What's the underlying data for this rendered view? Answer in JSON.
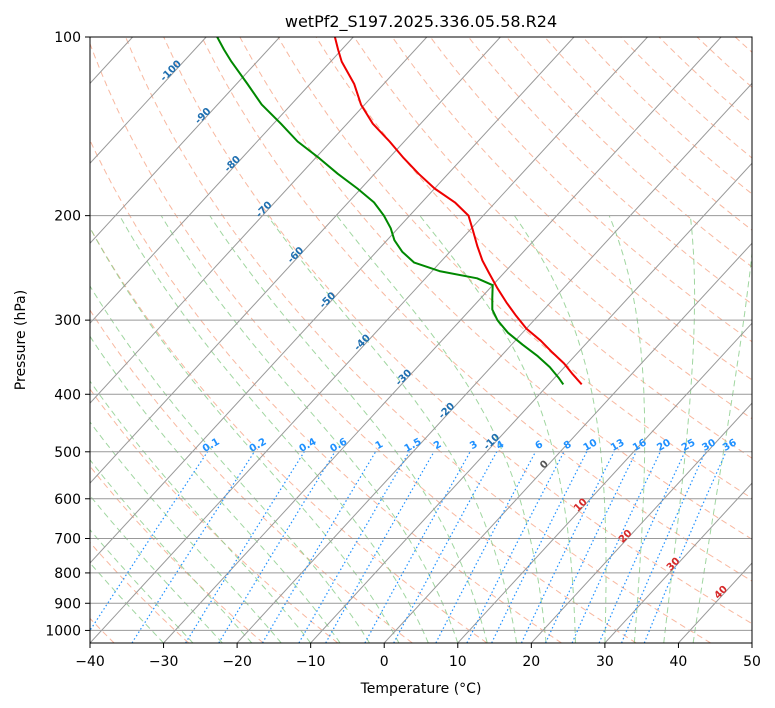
{
  "chart_data": {
    "type": "skew-t",
    "title": "wetPf2_S197.2025.336.05.58.R24",
    "xlabel": "Temperature (°C)",
    "ylabel": "Pressure (hPa)",
    "xlim": [
      -40,
      50
    ],
    "ylim_hpa": [
      1050,
      100
    ],
    "x_ticks": [
      "−40",
      "−30",
      "−20",
      "−10",
      "0",
      "10",
      "20",
      "30",
      "40",
      "50"
    ],
    "x_tick_values": [
      -40,
      -30,
      -20,
      -10,
      0,
      10,
      20,
      30,
      40,
      50
    ],
    "y_ticks": [
      "100",
      "200",
      "300",
      "400",
      "500",
      "600",
      "700",
      "800",
      "900",
      "1000"
    ],
    "y_tick_values": [
      100,
      200,
      300,
      400,
      500,
      600,
      700,
      800,
      900,
      1000
    ],
    "colors": {
      "temperature": "#ee0000",
      "dewpoint": "#008800",
      "isotherm": "#999999",
      "dry_adiabat": "#f5a080",
      "moist_adiabat": "#88cc88",
      "mixing_ratio": "#1e90ff",
      "isotherm_label": "#1f6fb0",
      "wet_bulb_label": "#d62728"
    },
    "isotherm_labels": [
      {
        "value": -100,
        "p": 115
      },
      {
        "value": -90,
        "p": 137
      },
      {
        "value": -80,
        "p": 165
      },
      {
        "value": -70,
        "p": 197
      },
      {
        "value": -60,
        "p": 235
      },
      {
        "value": -50,
        "p": 280
      },
      {
        "value": -40,
        "p": 330
      },
      {
        "value": -30,
        "p": 378
      },
      {
        "value": -20,
        "p": 430
      },
      {
        "value": -10,
        "p": 485
      }
    ],
    "mixing_ratio_labels": [
      "0.1",
      "0.2",
      "0.4",
      "0.6",
      "1",
      "1.5",
      "2",
      "3",
      "4",
      "6",
      "8",
      "10",
      "13",
      "16",
      "20",
      "25",
      "30",
      "36"
    ],
    "mixing_ratio_values": [
      0.1,
      0.2,
      0.4,
      0.6,
      1,
      1.5,
      2,
      3,
      4,
      6,
      8,
      10,
      13,
      16,
      20,
      25,
      30,
      36
    ],
    "wet_bulb_labels": [
      {
        "value": 0,
        "p": 530
      },
      {
        "value": 10,
        "p": 620
      },
      {
        "value": 20,
        "p": 700
      },
      {
        "value": 30,
        "p": 780
      },
      {
        "value": 40,
        "p": 870
      }
    ],
    "series": [
      {
        "name": "Temperature",
        "points": [
          {
            "p": 385,
            "t": -5.5
          },
          {
            "p": 370,
            "t": -8.0
          },
          {
            "p": 355,
            "t": -10.5
          },
          {
            "p": 340,
            "t": -13.5
          },
          {
            "p": 325,
            "t": -16.5
          },
          {
            "p": 310,
            "t": -20.0
          },
          {
            "p": 295,
            "t": -23.0
          },
          {
            "p": 280,
            "t": -26.0
          },
          {
            "p": 265,
            "t": -29.0
          },
          {
            "p": 250,
            "t": -32.0
          },
          {
            "p": 238,
            "t": -34.5
          },
          {
            "p": 225,
            "t": -37.0
          },
          {
            "p": 212,
            "t": -39.5
          },
          {
            "p": 200,
            "t": -42.0
          },
          {
            "p": 190,
            "t": -45.5
          },
          {
            "p": 180,
            "t": -50.0
          },
          {
            "p": 170,
            "t": -54.0
          },
          {
            "p": 160,
            "t": -58.0
          },
          {
            "p": 150,
            "t": -62.0
          },
          {
            "p": 140,
            "t": -66.5
          },
          {
            "p": 130,
            "t": -70.5
          },
          {
            "p": 120,
            "t": -74.0
          },
          {
            "p": 110,
            "t": -78.5
          },
          {
            "p": 105,
            "t": -80.5
          },
          {
            "p": 100,
            "t": -82.5
          }
        ]
      },
      {
        "name": "Dewpoint",
        "points": [
          {
            "p": 385,
            "t": -8.0
          },
          {
            "p": 375,
            "t": -9.5
          },
          {
            "p": 360,
            "t": -12.0
          },
          {
            "p": 345,
            "t": -15.0
          },
          {
            "p": 330,
            "t": -18.5
          },
          {
            "p": 315,
            "t": -22.0
          },
          {
            "p": 300,
            "t": -25.0
          },
          {
            "p": 288,
            "t": -27.0
          },
          {
            "p": 275,
            "t": -28.5
          },
          {
            "p": 262,
            "t": -30.0
          },
          {
            "p": 255,
            "t": -33.0
          },
          {
            "p": 248,
            "t": -39.0
          },
          {
            "p": 240,
            "t": -43.5
          },
          {
            "p": 230,
            "t": -46.5
          },
          {
            "p": 220,
            "t": -49.0
          },
          {
            "p": 210,
            "t": -51.0
          },
          {
            "p": 200,
            "t": -53.5
          },
          {
            "p": 190,
            "t": -56.5
          },
          {
            "p": 180,
            "t": -60.5
          },
          {
            "p": 170,
            "t": -65.0
          },
          {
            "p": 160,
            "t": -69.5
          },
          {
            "p": 150,
            "t": -74.5
          },
          {
            "p": 140,
            "t": -79.0
          },
          {
            "p": 130,
            "t": -84.0
          },
          {
            "p": 120,
            "t": -88.5
          },
          {
            "p": 110,
            "t": -93.5
          },
          {
            "p": 105,
            "t": -96.0
          },
          {
            "p": 100,
            "t": -98.5
          }
        ]
      }
    ]
  }
}
